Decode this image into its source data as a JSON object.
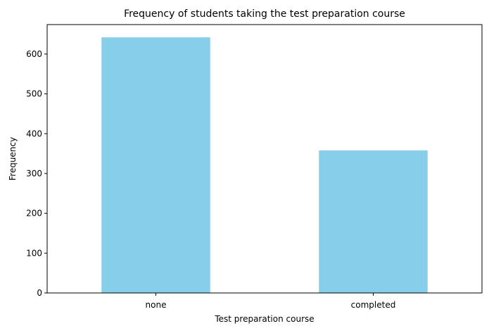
{
  "chart_data": {
    "type": "bar",
    "title": "Frequency of students taking the test preparation course",
    "xlabel": "Test preparation course",
    "ylabel": "Frequency",
    "categories": [
      "none",
      "completed"
    ],
    "values": [
      642,
      358
    ],
    "ylim": [
      0,
      674
    ],
    "yticks": [
      0,
      100,
      200,
      300,
      400,
      500,
      600
    ],
    "grid": false,
    "legend": "none",
    "bar_color": "#87CEEB"
  }
}
